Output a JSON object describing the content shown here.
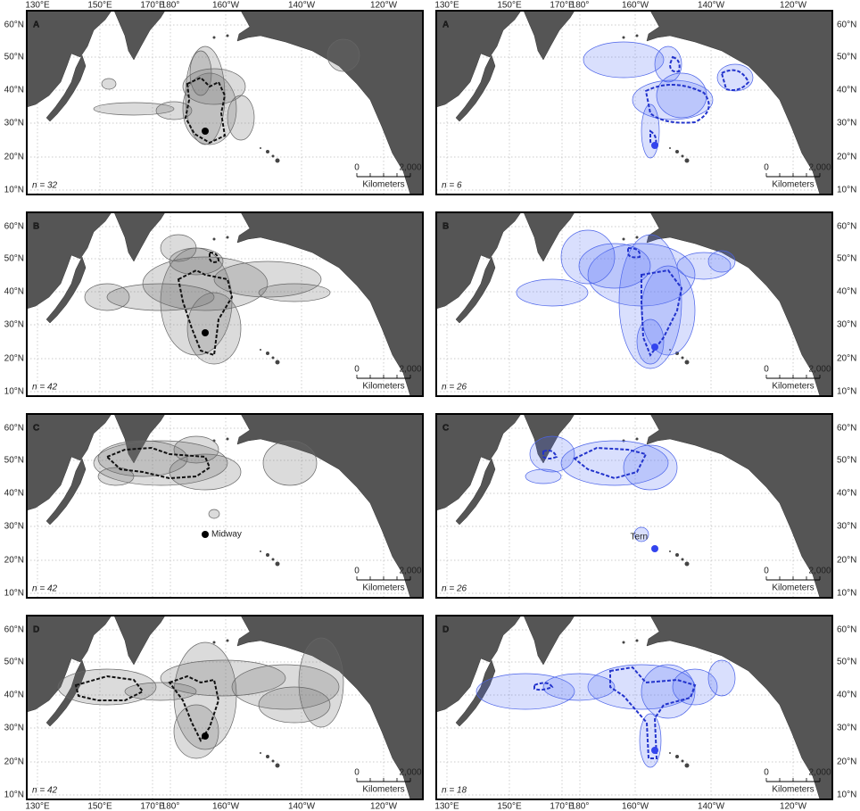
{
  "lon_labels": [
    "130°E",
    "150°E",
    "170°E",
    "180°",
    "160°W",
    "140°W",
    "120°W"
  ],
  "lat_labels": [
    "60°N",
    "50°N",
    "40°N",
    "30°N",
    "20°N",
    "10°N"
  ],
  "scale_bar": {
    "start": "0",
    "end": "2,000",
    "unit": "Kilometers"
  },
  "panels": [
    {
      "letter": "A",
      "n": "n = 32"
    },
    {
      "letter": "A",
      "n": "n = 6"
    },
    {
      "letter": "B",
      "n": "n = 42"
    },
    {
      "letter": "B",
      "n": "n = 26"
    },
    {
      "letter": "C",
      "n": "n = 42",
      "colony_label": "Midway"
    },
    {
      "letter": "C",
      "n": "n = 26",
      "colony_label": "Tern"
    },
    {
      "letter": "D",
      "n": "n = 42"
    },
    {
      "letter": "D",
      "n": "n = 18"
    }
  ]
}
